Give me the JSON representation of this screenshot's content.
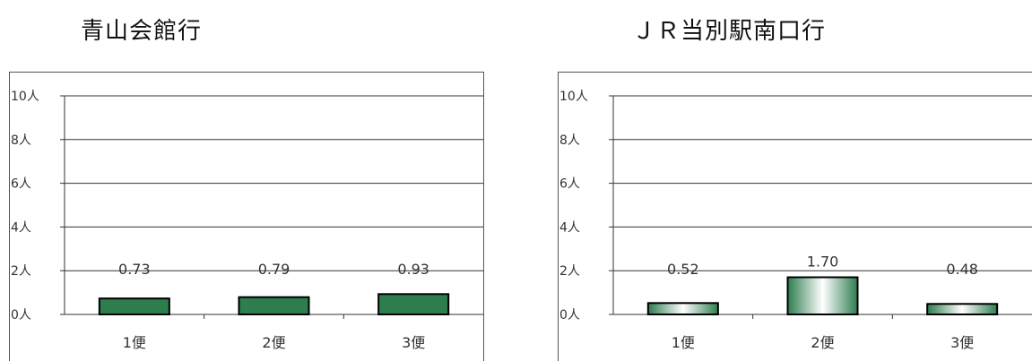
{
  "chart_data": [
    {
      "type": "bar",
      "title": "青山会館行",
      "categories": [
        "1便",
        "2便",
        "3便"
      ],
      "values": [
        0.73,
        0.79,
        0.93
      ],
      "value_labels": [
        "0.73",
        "0.79",
        "0.93"
      ],
      "yticks": [
        "0人",
        "2人",
        "4人",
        "6人",
        "8人",
        "10人"
      ],
      "ylim": [
        0,
        10
      ],
      "grid": true,
      "fill": "gradient-green",
      "colors": {
        "edge": "#2e7d4f",
        "mid": "#2e7d4f"
      }
    },
    {
      "type": "bar",
      "title": "ＪＲ当別駅南口行",
      "categories": [
        "1便",
        "2便",
        "3便"
      ],
      "values": [
        0.52,
        1.7,
        0.48
      ],
      "value_labels": [
        "0.52",
        "1.70",
        "0.48"
      ],
      "yticks": [
        "0人",
        "2人",
        "4人",
        "6人",
        "8人",
        "10人"
      ],
      "ylim": [
        0,
        10
      ],
      "grid": true,
      "fill": "gradient-green",
      "colors": {
        "edge": "#2e7d4f",
        "mid": "#ffffff"
      }
    }
  ]
}
